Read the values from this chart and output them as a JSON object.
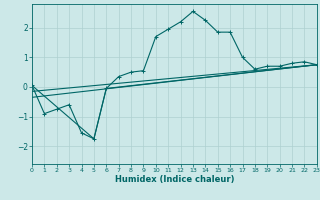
{
  "xlabel": "Humidex (Indice chaleur)",
  "ylabel": "",
  "background_color": "#cce8e8",
  "grid_color": "#aed0d0",
  "line_color": "#006666",
  "xlim": [
    0,
    23
  ],
  "ylim": [
    -2.6,
    2.8
  ],
  "x_ticks": [
    0,
    1,
    2,
    3,
    4,
    5,
    6,
    7,
    8,
    9,
    10,
    11,
    12,
    13,
    14,
    15,
    16,
    17,
    18,
    19,
    20,
    21,
    22,
    23
  ],
  "y_ticks": [
    -2,
    -1,
    0,
    1,
    2
  ],
  "series1_x": [
    0,
    1,
    2,
    3,
    4,
    5,
    6,
    7,
    8,
    9,
    10,
    11,
    12,
    13,
    14,
    15,
    16,
    17,
    18,
    19,
    20,
    21,
    22,
    23
  ],
  "series1_y": [
    0.05,
    -0.9,
    -0.75,
    -0.6,
    -1.55,
    -1.75,
    -0.05,
    0.35,
    0.5,
    0.55,
    1.7,
    1.95,
    2.2,
    2.55,
    2.25,
    1.85,
    1.85,
    1.0,
    0.6,
    0.7,
    0.7,
    0.8,
    0.85,
    0.75
  ],
  "series2_x": [
    0,
    5,
    6,
    23
  ],
  "series2_y": [
    0.05,
    -1.75,
    -0.05,
    0.75
  ],
  "series3_x": [
    0,
    23
  ],
  "series3_y": [
    -0.35,
    0.75
  ],
  "series4_x": [
    0,
    23
  ],
  "series4_y": [
    -0.15,
    0.75
  ]
}
